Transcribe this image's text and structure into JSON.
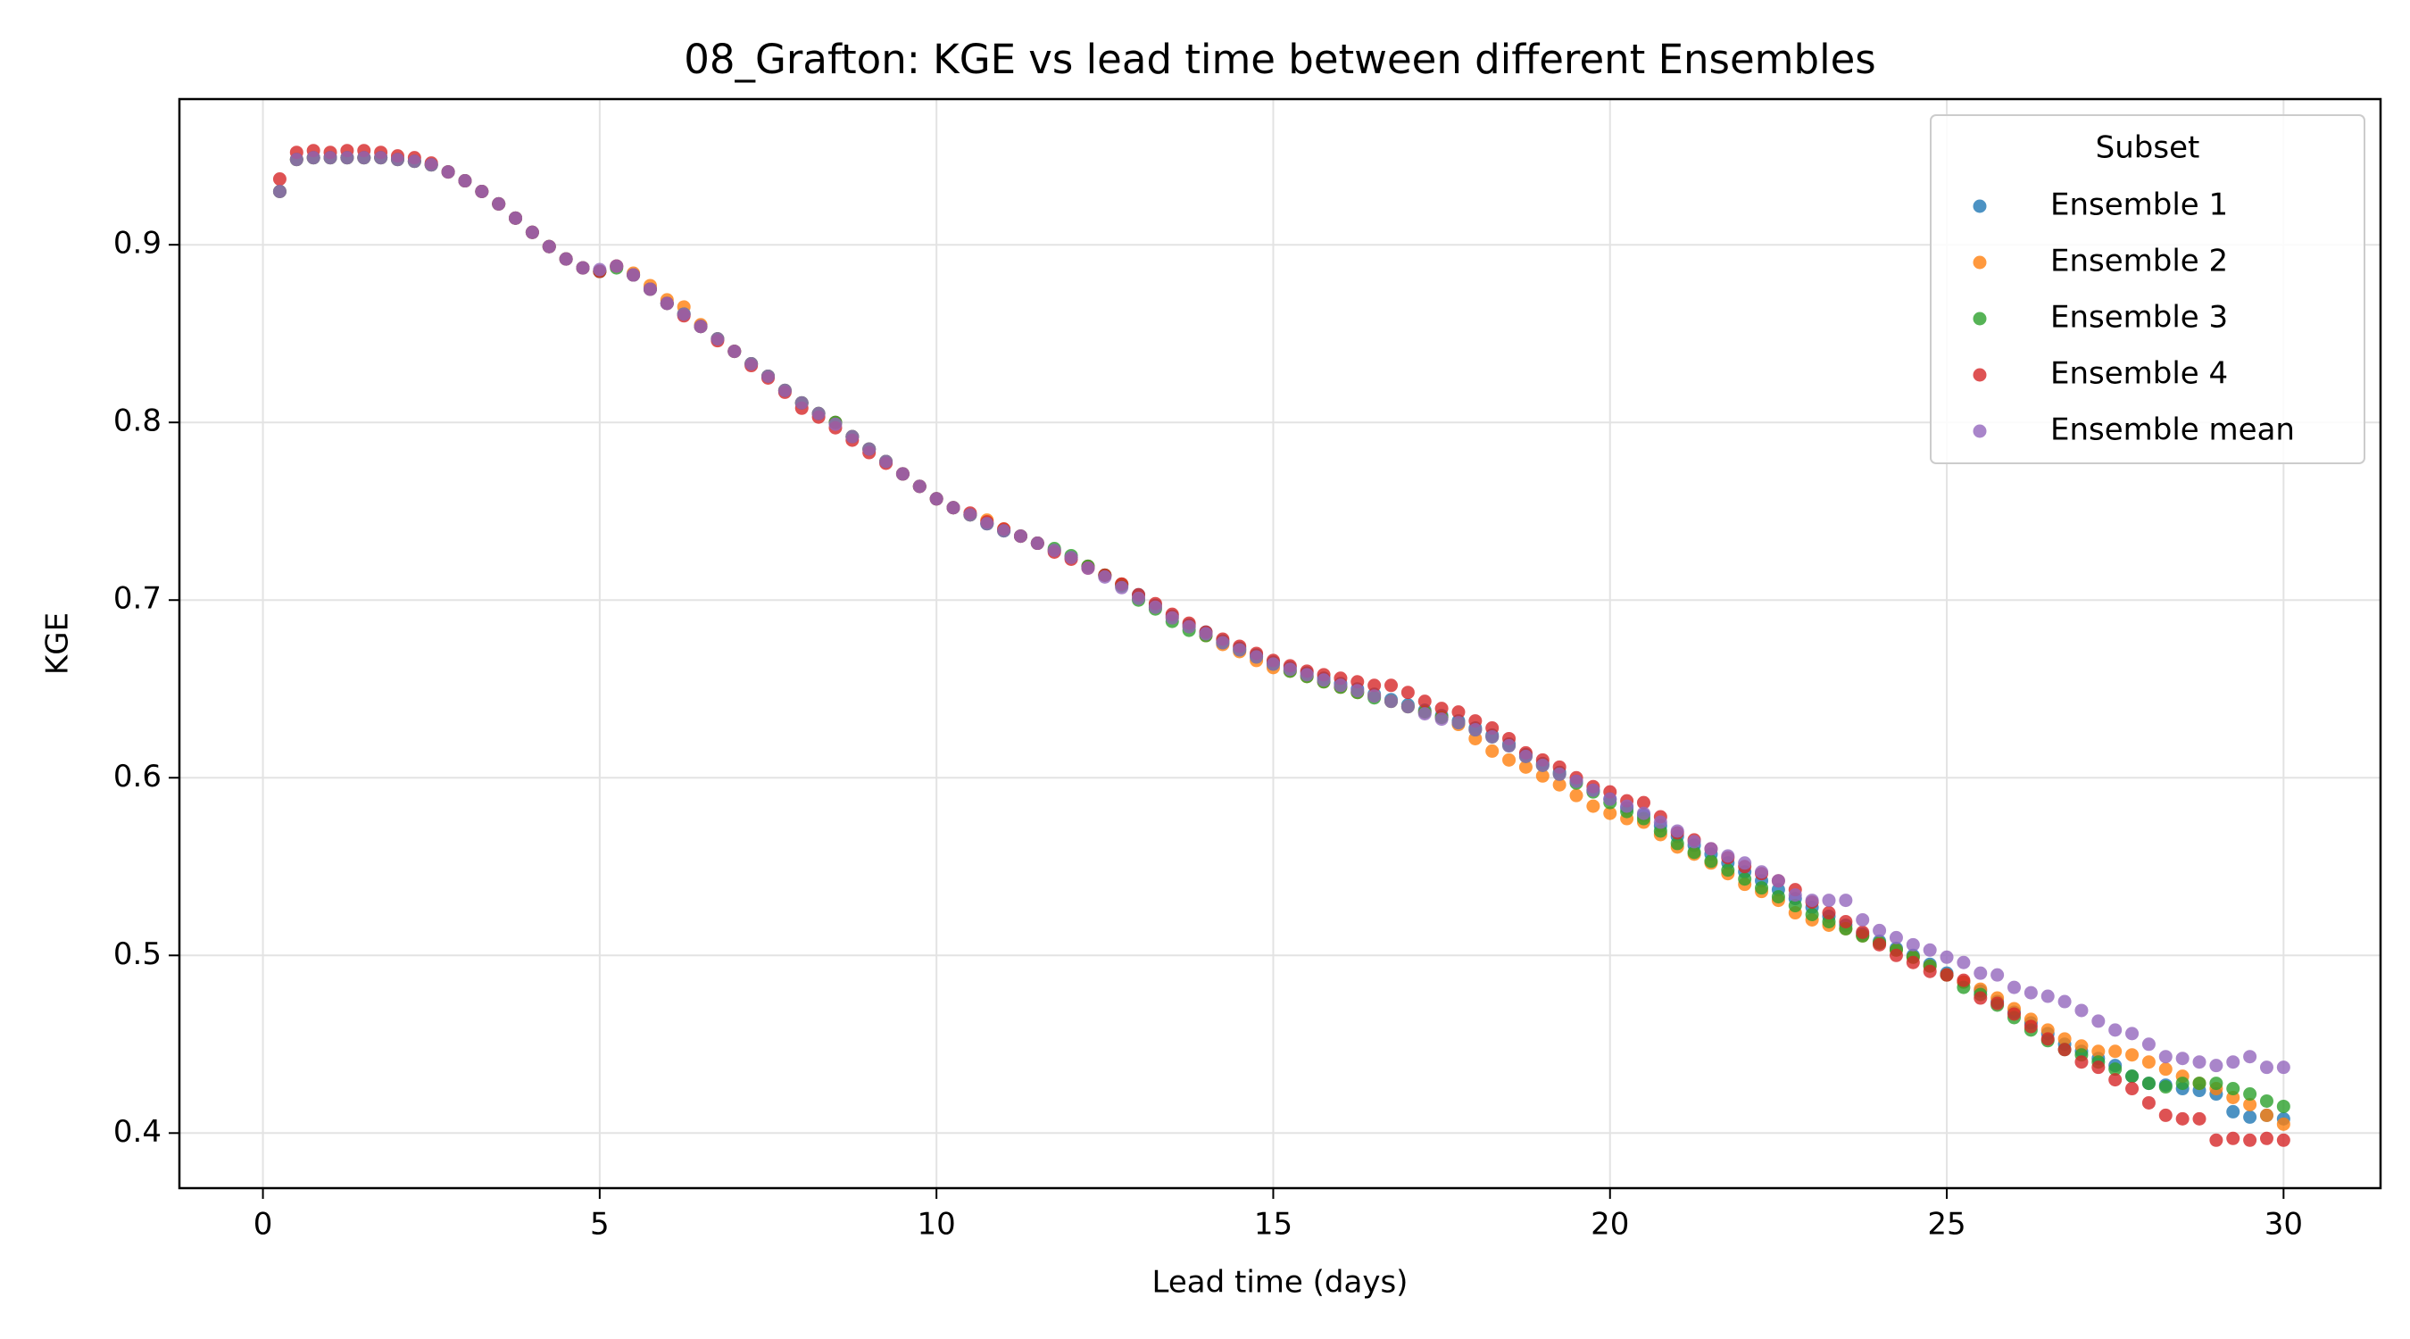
{
  "chart_data": {
    "type": "scatter",
    "title": "08_Grafton: KGE vs lead time between different Ensembles",
    "x_label": "Lead time (days)",
    "y_label": "KGE",
    "legend_title": "Subset",
    "legend": "upper right",
    "grid": true,
    "xlim": [
      -1.24,
      31.44
    ],
    "ylim": [
      0.369,
      0.982
    ],
    "xticks": [
      0,
      5,
      10,
      15,
      20,
      25,
      30
    ],
    "yticks": [
      0.4,
      0.5,
      0.6,
      0.7,
      0.8,
      0.9
    ],
    "x": [
      0.25,
      0.5,
      0.75,
      1,
      1.25,
      1.5,
      1.75,
      2,
      2.25,
      2.5,
      2.75,
      3,
      3.25,
      3.5,
      3.75,
      4,
      4.25,
      4.5,
      4.75,
      5,
      5.25,
      5.5,
      5.75,
      6,
      6.25,
      6.5,
      6.75,
      7,
      7.25,
      7.5,
      7.75,
      8,
      8.25,
      8.5,
      8.75,
      9,
      9.25,
      9.5,
      9.75,
      10,
      10.25,
      10.5,
      10.75,
      11,
      11.25,
      11.5,
      11.75,
      12,
      12.25,
      12.5,
      12.75,
      13,
      13.25,
      13.5,
      13.75,
      14,
      14.25,
      14.5,
      14.75,
      15,
      15.25,
      15.5,
      15.75,
      16,
      16.25,
      16.5,
      16.75,
      17,
      17.25,
      17.5,
      17.75,
      18,
      18.25,
      18.5,
      18.75,
      19,
      19.25,
      19.5,
      19.75,
      20,
      20.25,
      20.5,
      20.75,
      21,
      21.25,
      21.5,
      21.75,
      22,
      22.25,
      22.5,
      22.75,
      23,
      23.25,
      23.5,
      23.75,
      24,
      24.25,
      24.5,
      24.75,
      25,
      25.25,
      25.5,
      25.75,
      26,
      26.25,
      26.5,
      26.75,
      27,
      27.25,
      27.5,
      27.75,
      28,
      28.25,
      28.5,
      28.75,
      29,
      29.25,
      29.5,
      29.75,
      30
    ],
    "series": [
      {
        "name": "Ensemble 1",
        "color": "#1f77b4",
        "values": [
          0.93,
          0.948,
          0.949,
          0.949,
          0.949,
          0.949,
          0.949,
          0.948,
          0.947,
          0.945,
          0.941,
          0.936,
          0.93,
          0.923,
          0.915,
          0.907,
          0.899,
          0.892,
          0.887,
          0.885,
          0.888,
          0.883,
          0.875,
          0.867,
          0.861,
          0.854,
          0.847,
          0.84,
          0.833,
          0.826,
          0.818,
          0.811,
          0.805,
          0.8,
          0.792,
          0.785,
          0.778,
          0.771,
          0.764,
          0.757,
          0.752,
          0.748,
          0.743,
          0.739,
          0.736,
          0.732,
          0.728,
          0.724,
          0.719,
          0.714,
          0.709,
          0.703,
          0.697,
          0.691,
          0.686,
          0.682,
          0.677,
          0.673,
          0.669,
          0.665,
          0.662,
          0.659,
          0.656,
          0.653,
          0.65,
          0.647,
          0.644,
          0.641,
          0.638,
          0.635,
          0.632,
          0.628,
          0.624,
          0.619,
          0.613,
          0.608,
          0.603,
          0.598,
          0.593,
          0.588,
          0.583,
          0.579,
          0.573,
          0.567,
          0.562,
          0.557,
          0.552,
          0.547,
          0.542,
          0.537,
          0.532,
          0.527,
          0.522,
          0.517,
          0.512,
          0.508,
          0.504,
          0.5,
          0.495,
          0.49,
          0.485,
          0.48,
          0.474,
          0.468,
          0.462,
          0.456,
          0.45,
          0.446,
          0.442,
          0.438,
          0.432,
          0.428,
          0.427,
          0.425,
          0.424,
          0.422,
          0.412,
          0.409,
          0.41,
          0.408
        ]
      },
      {
        "name": "Ensemble 2",
        "color": "#ff7f0e",
        "values": [
          0.93,
          0.948,
          0.949,
          0.949,
          0.949,
          0.949,
          0.949,
          0.948,
          0.947,
          0.945,
          0.941,
          0.936,
          0.93,
          0.923,
          0.915,
          0.907,
          0.899,
          0.892,
          0.887,
          0.885,
          0.888,
          0.884,
          0.877,
          0.869,
          0.865,
          0.855,
          0.847,
          0.84,
          0.833,
          0.826,
          0.818,
          0.811,
          0.805,
          0.8,
          0.792,
          0.785,
          0.778,
          0.771,
          0.764,
          0.757,
          0.752,
          0.748,
          0.745,
          0.74,
          0.736,
          0.732,
          0.728,
          0.724,
          0.719,
          0.714,
          0.709,
          0.701,
          0.696,
          0.69,
          0.685,
          0.68,
          0.675,
          0.671,
          0.666,
          0.662,
          0.66,
          0.657,
          0.654,
          0.651,
          0.648,
          0.646,
          0.643,
          0.64,
          0.637,
          0.634,
          0.63,
          0.622,
          0.615,
          0.61,
          0.606,
          0.601,
          0.596,
          0.59,
          0.584,
          0.58,
          0.577,
          0.575,
          0.568,
          0.561,
          0.557,
          0.552,
          0.546,
          0.54,
          0.536,
          0.531,
          0.524,
          0.52,
          0.517,
          0.515,
          0.511,
          0.507,
          0.503,
          0.499,
          0.494,
          0.489,
          0.485,
          0.481,
          0.476,
          0.47,
          0.464,
          0.458,
          0.453,
          0.449,
          0.446,
          0.446,
          0.444,
          0.44,
          0.436,
          0.432,
          0.428,
          0.425,
          0.42,
          0.416,
          0.41,
          0.405
        ]
      },
      {
        "name": "Ensemble 3",
        "color": "#2ca02c",
        "values": [
          0.93,
          0.948,
          0.949,
          0.949,
          0.949,
          0.949,
          0.949,
          0.948,
          0.947,
          0.945,
          0.941,
          0.936,
          0.93,
          0.923,
          0.915,
          0.907,
          0.899,
          0.892,
          0.887,
          0.885,
          0.887,
          0.883,
          0.875,
          0.867,
          0.861,
          0.854,
          0.847,
          0.84,
          0.833,
          0.826,
          0.818,
          0.811,
          0.805,
          0.8,
          0.792,
          0.785,
          0.778,
          0.771,
          0.764,
          0.757,
          0.752,
          0.748,
          0.743,
          0.739,
          0.736,
          0.732,
          0.729,
          0.725,
          0.719,
          0.714,
          0.708,
          0.7,
          0.695,
          0.688,
          0.683,
          0.68,
          0.676,
          0.672,
          0.668,
          0.664,
          0.66,
          0.657,
          0.654,
          0.651,
          0.648,
          0.645,
          0.643,
          0.64,
          0.637,
          0.634,
          0.631,
          0.627,
          0.623,
          0.618,
          0.612,
          0.607,
          0.602,
          0.597,
          0.592,
          0.586,
          0.581,
          0.577,
          0.57,
          0.563,
          0.558,
          0.553,
          0.548,
          0.543,
          0.538,
          0.533,
          0.528,
          0.523,
          0.519,
          0.515,
          0.511,
          0.507,
          0.503,
          0.499,
          0.494,
          0.489,
          0.482,
          0.478,
          0.472,
          0.465,
          0.458,
          0.452,
          0.447,
          0.444,
          0.44,
          0.436,
          0.432,
          0.428,
          0.426,
          0.428,
          0.428,
          0.428,
          0.425,
          0.422,
          0.418,
          0.415
        ]
      },
      {
        "name": "Ensemble 4",
        "color": "#d62728",
        "values": [
          0.937,
          0.952,
          0.953,
          0.952,
          0.953,
          0.953,
          0.952,
          0.95,
          0.949,
          0.946,
          0.941,
          0.936,
          0.93,
          0.923,
          0.915,
          0.907,
          0.899,
          0.892,
          0.887,
          0.885,
          0.888,
          0.883,
          0.875,
          0.867,
          0.86,
          0.854,
          0.846,
          0.84,
          0.832,
          0.825,
          0.817,
          0.808,
          0.803,
          0.797,
          0.79,
          0.783,
          0.777,
          0.771,
          0.764,
          0.757,
          0.752,
          0.749,
          0.744,
          0.74,
          0.736,
          0.732,
          0.727,
          0.723,
          0.718,
          0.714,
          0.709,
          0.703,
          0.698,
          0.692,
          0.687,
          0.682,
          0.678,
          0.674,
          0.67,
          0.666,
          0.663,
          0.66,
          0.658,
          0.656,
          0.654,
          0.652,
          0.652,
          0.648,
          0.643,
          0.639,
          0.637,
          0.632,
          0.628,
          0.622,
          0.614,
          0.61,
          0.606,
          0.6,
          0.595,
          0.592,
          0.587,
          0.586,
          0.578,
          0.569,
          0.565,
          0.56,
          0.555,
          0.55,
          0.546,
          0.542,
          0.537,
          0.53,
          0.524,
          0.519,
          0.513,
          0.506,
          0.5,
          0.496,
          0.491,
          0.489,
          0.486,
          0.476,
          0.473,
          0.467,
          0.46,
          0.453,
          0.447,
          0.44,
          0.437,
          0.43,
          0.425,
          0.417,
          0.41,
          0.408,
          0.408,
          0.396,
          0.397,
          0.396,
          0.397,
          0.396
        ]
      },
      {
        "name": "Ensemble mean",
        "color": "#9467bd",
        "values": [
          0.93,
          0.948,
          0.949,
          0.949,
          0.949,
          0.949,
          0.949,
          0.948,
          0.947,
          0.945,
          0.941,
          0.936,
          0.93,
          0.923,
          0.915,
          0.907,
          0.899,
          0.892,
          0.887,
          0.886,
          0.888,
          0.883,
          0.875,
          0.867,
          0.861,
          0.854,
          0.847,
          0.84,
          0.833,
          0.826,
          0.818,
          0.811,
          0.805,
          0.799,
          0.792,
          0.785,
          0.778,
          0.771,
          0.764,
          0.757,
          0.752,
          0.748,
          0.743,
          0.739,
          0.736,
          0.732,
          0.728,
          0.724,
          0.718,
          0.713,
          0.707,
          0.701,
          0.696,
          0.69,
          0.685,
          0.681,
          0.676,
          0.672,
          0.668,
          0.664,
          0.661,
          0.658,
          0.655,
          0.652,
          0.649,
          0.646,
          0.643,
          0.64,
          0.636,
          0.633,
          0.631,
          0.627,
          0.623,
          0.618,
          0.612,
          0.607,
          0.602,
          0.598,
          0.593,
          0.588,
          0.584,
          0.58,
          0.575,
          0.57,
          0.564,
          0.56,
          0.556,
          0.552,
          0.547,
          0.542,
          0.534,
          0.531,
          0.531,
          0.531,
          0.52,
          0.514,
          0.51,
          0.506,
          0.503,
          0.499,
          0.496,
          0.49,
          0.489,
          0.482,
          0.479,
          0.477,
          0.474,
          0.469,
          0.463,
          0.458,
          0.456,
          0.45,
          0.443,
          0.442,
          0.44,
          0.438,
          0.44,
          0.443,
          0.437,
          0.437
        ]
      }
    ]
  }
}
